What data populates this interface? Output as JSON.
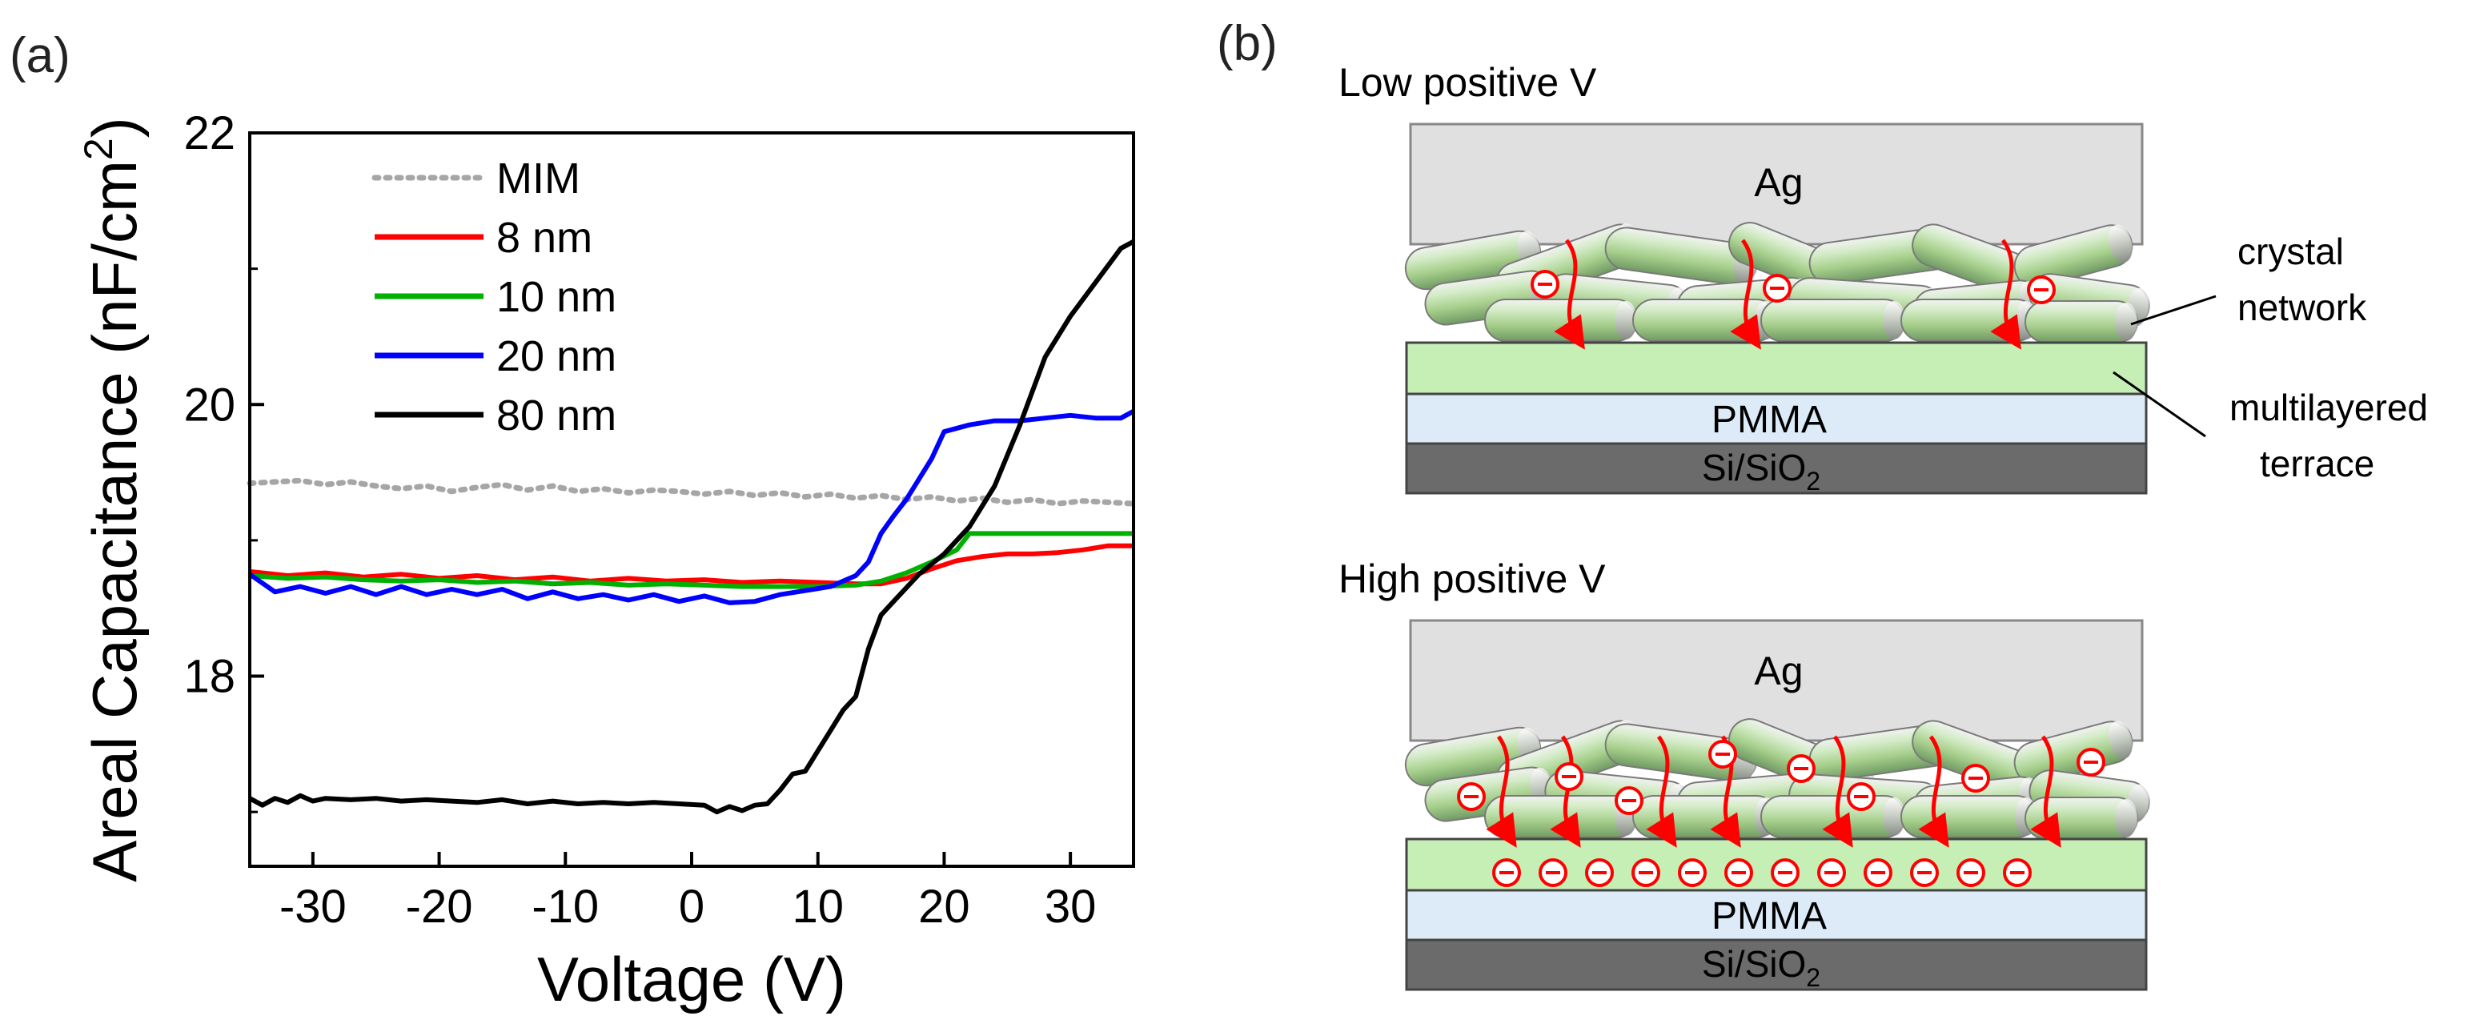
{
  "panel_a": {
    "label": "(a)"
  },
  "panel_b": {
    "label": "(b)",
    "low_title": "Low positive V",
    "high_title": "High positive V",
    "electrode": "Ag",
    "dielectric": "PMMA",
    "substrate_main": "Si/SiO",
    "substrate_sub": "2",
    "crystal_label_1": "crystal",
    "crystal_label_2": "network",
    "terrace_label_1": "multilayered",
    "terrace_label_2": "terrace",
    "charge_symbol": "⊖",
    "low_charges": 3,
    "high_network_charges": 8,
    "high_terrace_charges": 12
  },
  "chart_data": {
    "type": "line",
    "title": "",
    "xlabel": "Voltage (V)",
    "ylabel": "Areal Capacitance (nF/cm2)",
    "ylabel_main": "Areal Capacitance (nF/cm",
    "ylabel_sup": "2",
    "ylabel_end": ")",
    "xlim": [
      -35,
      35
    ],
    "ylim": [
      16.6,
      22
    ],
    "xticks": [
      -30,
      -20,
      -10,
      0,
      10,
      20,
      30
    ],
    "xtick_labels": [
      "-30",
      "-20",
      "-10",
      "0",
      "10",
      "20",
      "30"
    ],
    "yticks": [
      18,
      20,
      22
    ],
    "ytick_labels": [
      "18",
      "20",
      "22"
    ],
    "grid": false,
    "legend_position": "top-left",
    "series": [
      {
        "name": "MIM",
        "color": "#a6a6a6",
        "style": "dotted",
        "x": [
          -35,
          -33,
          -31,
          -29,
          -27,
          -25,
          -23,
          -21,
          -19,
          -17,
          -15,
          -13,
          -11,
          -9,
          -7,
          -5,
          -3,
          -1,
          1,
          3,
          5,
          7,
          9,
          11,
          13,
          15,
          17,
          19,
          21,
          23,
          25,
          27,
          29,
          31,
          33,
          35
        ],
        "y": [
          19.42,
          19.43,
          19.44,
          19.41,
          19.43,
          19.4,
          19.38,
          19.4,
          19.36,
          19.39,
          19.41,
          19.37,
          19.4,
          19.36,
          19.38,
          19.35,
          19.37,
          19.36,
          19.34,
          19.36,
          19.33,
          19.35,
          19.32,
          19.34,
          19.31,
          19.33,
          19.3,
          19.32,
          19.29,
          19.31,
          19.28,
          19.3,
          19.27,
          19.29,
          19.28,
          19.27
        ]
      },
      {
        "name": "8 nm",
        "color": "#ff0000",
        "style": "solid",
        "x": [
          -35,
          -32,
          -29,
          -26,
          -23,
          -20,
          -17,
          -14,
          -11,
          -8,
          -5,
          -2,
          1,
          4,
          7,
          10,
          13,
          15,
          17,
          19,
          21,
          23,
          25,
          27,
          29,
          31,
          33,
          35
        ],
        "y": [
          18.77,
          18.74,
          18.76,
          18.73,
          18.75,
          18.72,
          18.74,
          18.71,
          18.73,
          18.7,
          18.72,
          18.7,
          18.71,
          18.69,
          18.7,
          18.69,
          18.68,
          18.68,
          18.72,
          18.79,
          18.85,
          18.88,
          18.9,
          18.9,
          18.91,
          18.93,
          18.96,
          18.96
        ]
      },
      {
        "name": "10 nm",
        "color": "#00b000",
        "style": "solid",
        "x": [
          -35,
          -32,
          -29,
          -26,
          -23,
          -20,
          -17,
          -14,
          -11,
          -8,
          -5,
          -2,
          1,
          4,
          7,
          10,
          13,
          15,
          17,
          19,
          21,
          22,
          25,
          28,
          31,
          35
        ],
        "y": [
          18.74,
          18.72,
          18.73,
          18.71,
          18.7,
          18.71,
          18.69,
          18.7,
          18.68,
          18.69,
          18.67,
          18.68,
          18.67,
          18.66,
          18.66,
          18.66,
          18.67,
          18.7,
          18.76,
          18.84,
          18.93,
          19.05,
          19.05,
          19.05,
          19.05,
          19.05
        ]
      },
      {
        "name": "20 nm",
        "color": "#0000ff",
        "style": "solid",
        "x": [
          -35,
          -33,
          -31,
          -29,
          -27,
          -25,
          -23,
          -21,
          -19,
          -17,
          -15,
          -13,
          -11,
          -9,
          -7,
          -5,
          -3,
          -1,
          1,
          3,
          5,
          7,
          9,
          11,
          13,
          14,
          15,
          16,
          17,
          18,
          19,
          20,
          22,
          24,
          26,
          28,
          30,
          32,
          34,
          35
        ],
        "y": [
          18.75,
          18.62,
          18.66,
          18.61,
          18.66,
          18.6,
          18.66,
          18.6,
          18.64,
          18.6,
          18.64,
          18.57,
          18.62,
          18.57,
          18.6,
          18.56,
          18.6,
          18.55,
          18.59,
          18.54,
          18.55,
          18.6,
          18.63,
          18.66,
          18.74,
          18.84,
          19.05,
          19.18,
          19.3,
          19.45,
          19.6,
          19.8,
          19.85,
          19.88,
          19.88,
          19.9,
          19.92,
          19.9,
          19.9,
          19.95
        ]
      },
      {
        "name": "80 nm",
        "color": "#000000",
        "style": "solid",
        "x": [
          -35,
          -34,
          -33,
          -32,
          -31,
          -30,
          -29,
          -27,
          -25,
          -23,
          -21,
          -19,
          -17,
          -15,
          -13,
          -11,
          -9,
          -7,
          -5,
          -3,
          -1,
          1,
          2,
          3,
          4,
          5,
          6,
          7,
          8,
          9,
          10,
          11,
          12,
          13,
          14,
          15,
          16,
          18,
          20,
          22,
          24,
          26,
          28,
          30,
          32,
          34,
          35
        ],
        "y": [
          17.1,
          17.05,
          17.1,
          17.07,
          17.12,
          17.08,
          17.1,
          17.09,
          17.1,
          17.08,
          17.09,
          17.08,
          17.07,
          17.09,
          17.06,
          17.08,
          17.06,
          17.07,
          17.06,
          17.07,
          17.06,
          17.05,
          17.0,
          17.04,
          17.01,
          17.05,
          17.06,
          17.16,
          17.28,
          17.3,
          17.45,
          17.6,
          17.75,
          17.85,
          18.2,
          18.45,
          18.55,
          18.75,
          18.9,
          19.1,
          19.4,
          19.85,
          20.35,
          20.65,
          20.9,
          21.15,
          21.2
        ]
      }
    ]
  }
}
